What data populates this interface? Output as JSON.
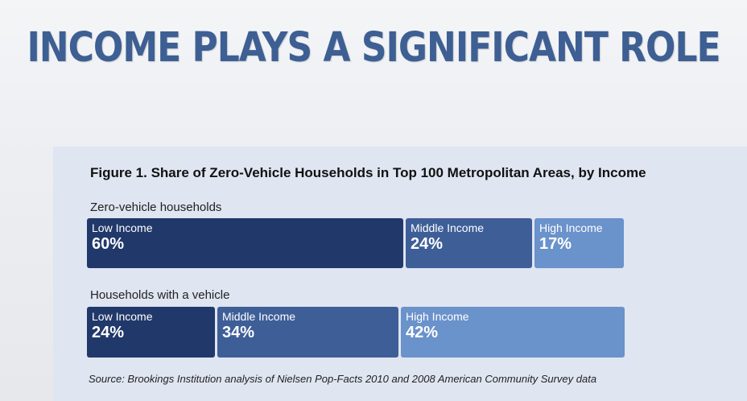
{
  "slide": {
    "title": "INCOME PLAYS A SIGNIFICANT ROLE"
  },
  "colors": {
    "low_income": "#21386a",
    "middle_income": "#3e5e97",
    "high_income": "#6a92cb",
    "panel": "#dfe5f1",
    "title": "#3d5f93"
  },
  "chart_data": {
    "type": "bar",
    "stacked": true,
    "orientation": "horizontal",
    "title": "Figure 1. Share of Zero-Vehicle Households in Top 100 Metropolitan Areas, by Income",
    "categories": [
      "Zero-vehicle households",
      "Households with a vehicle"
    ],
    "series": [
      {
        "name": "Low Income",
        "values": [
          60,
          24
        ],
        "labels": [
          "60%",
          "24%"
        ]
      },
      {
        "name": "Middle Income",
        "values": [
          24,
          34
        ],
        "labels": [
          "24%",
          "34%"
        ]
      },
      {
        "name": "High Income",
        "values": [
          17,
          42
        ],
        "labels": [
          "17%",
          "42%"
        ]
      }
    ],
    "xlim": [
      0,
      100
    ],
    "grid": false,
    "legend": "none",
    "source": "Source: Brookings Institution analysis of Nielsen Pop-Facts 2010 and 2008 American Community Survey data"
  }
}
